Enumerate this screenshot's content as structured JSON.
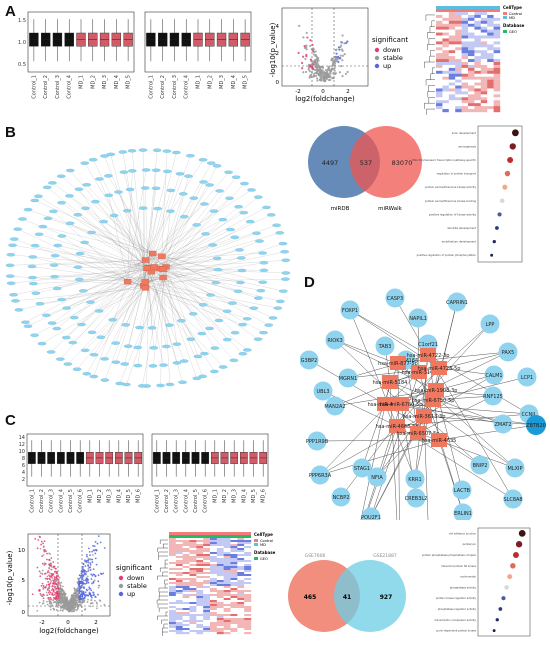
{
  "panels": {
    "a": "A",
    "b": "B",
    "c": "C",
    "d": "D"
  },
  "colors": {
    "control": "#111111",
    "md": "#d35b68",
    "down": "#e0406e",
    "stable": "#9a9a9a",
    "up": "#5566dd",
    "node_blue": "#8fd3ee",
    "node_orange": "#f0785e",
    "venn_left": "#4b77ad",
    "venn_right": "#f05650",
    "venn2_left": "#ef7a66",
    "venn2_right": "#6ccde6"
  },
  "panel_a": {
    "boxplot_samples": [
      "Control_1",
      "Control_2",
      "Control_3",
      "Control_4",
      "MD_1",
      "MD_2",
      "MD_3",
      "MD_4",
      "MD_5"
    ],
    "boxplot_yticks": [
      "1.5",
      "1.0",
      "0.5"
    ],
    "volcano": {
      "xlabel": "log2(foldchange)",
      "ylabel": "-log10(p_value)",
      "xticks": [
        "-2",
        "0",
        "2"
      ],
      "yticks": [
        "4",
        "2",
        "0"
      ]
    },
    "legend_title": "significant",
    "legend_items": [
      "down",
      "stable",
      "up"
    ],
    "heatmap_legend": {
      "celltype_title": "CellType",
      "database_title": "Database",
      "celltype_items": [
        "Control",
        "MD"
      ],
      "database_items": [
        "GEO"
      ],
      "scale": [
        "2",
        "1",
        "0",
        "-1",
        "-2"
      ]
    }
  },
  "panel_b": {
    "venn_left_label": "miRDB",
    "venn_right_label": "miRWalk",
    "venn_left_only": "4497",
    "venn_overlap": "537",
    "venn_right_only": "83070",
    "dot_terms": [
      "axon development",
      "axonogenesis",
      "RNA Polymerase II transcription pathway-specific",
      "regulation of protein transport",
      "protein serine/threonine kinase activity",
      "protein serine/threonine kinase binding",
      "positive regulation of kinase activity",
      "dendrite development",
      "endothelium development",
      "positive regulation of protein phosphorylation"
    ]
  },
  "panel_c": {
    "boxplot_samples": [
      "Control_1",
      "Control_2",
      "Control_3",
      "Control_4",
      "Control_5",
      "Control_6",
      "MD_1",
      "MD_2",
      "MD_3",
      "MD_4",
      "MD_5",
      "MD_6"
    ],
    "boxplot_yticks": [
      "14",
      "12",
      "10",
      "8",
      "6",
      "4",
      "2"
    ],
    "volcano": {
      "xlabel": "log2(foldchange)",
      "ylabel": "-log10(p_value)",
      "xticks": [
        "-2",
        "0",
        "2"
      ],
      "yticks": [
        "10",
        "5",
        "0"
      ]
    },
    "legend_title": "significant",
    "legend_items": [
      "down",
      "stable",
      "up"
    ],
    "heatmap_legend": {
      "celltype_title": "CellType",
      "database_title": "Database",
      "celltype_items": [
        "Control",
        "MD"
      ],
      "database_items": [
        "GEO"
      ],
      "scale": [
        "2",
        "1",
        "0",
        "-1",
        "-2"
      ]
    },
    "venn_left_label": "GSE7606",
    "venn_right_label": "GSE21887",
    "venn_left_only": "465",
    "venn_overlap": "41",
    "venn_right_only": "927",
    "dot_terms": [
      "cell adhesion junction",
      "perikaryon",
      "protein phosphatase phosphatase complex",
      "ribosomal protein S6 kinase",
      "euchromatin",
      "phosphatase activity",
      "protein kinase regulator activity",
      "phosphatase regulator activity",
      "transcription corepressor activity",
      "cyclin-dependent protein kinase"
    ]
  },
  "panel_d": {
    "mirnas": [
      "hsa-miR-4722-3p",
      "hsa-miR-877-5p",
      "hsa-miR-3141",
      "hsa-miR-4723-5p",
      "hsa-miR-5184",
      "hsa-miR-1908-3p",
      "hsa-miR-4430",
      "hsa-miR-6780-5p",
      "hsa-miR-6750-5p",
      "hsa-miR-3613-3p",
      "hsa-miR-4668-5p",
      "hsa-miR-6507-5p",
      "hsa-miR-4635"
    ],
    "genes": [
      "CASP3",
      "CAPRIN1",
      "FOXP1",
      "NAPIL1",
      "LPP",
      "RIOK3",
      "TAB3",
      "C1orf21",
      "PAX5",
      "G3BP2",
      "TMEM164",
      "CALM1",
      "LCP1",
      "MGRN1",
      "RNF125",
      "UBL3",
      "MAN2A2",
      "CCNJL",
      "PPP1R9B",
      "ZMAT2",
      "PPP6R3A",
      "STAG1",
      "BNIP2",
      "MLXIP",
      "NCBP2",
      "NFIA",
      "KRR1",
      "LACTB",
      "SLC8A8",
      "POU2F1",
      "CREB3L2",
      "ERLIN1",
      "RHOG",
      "TPM4",
      "ZNF384",
      "ZBTB20"
    ],
    "hub_gene": "ZBTB20"
  }
}
